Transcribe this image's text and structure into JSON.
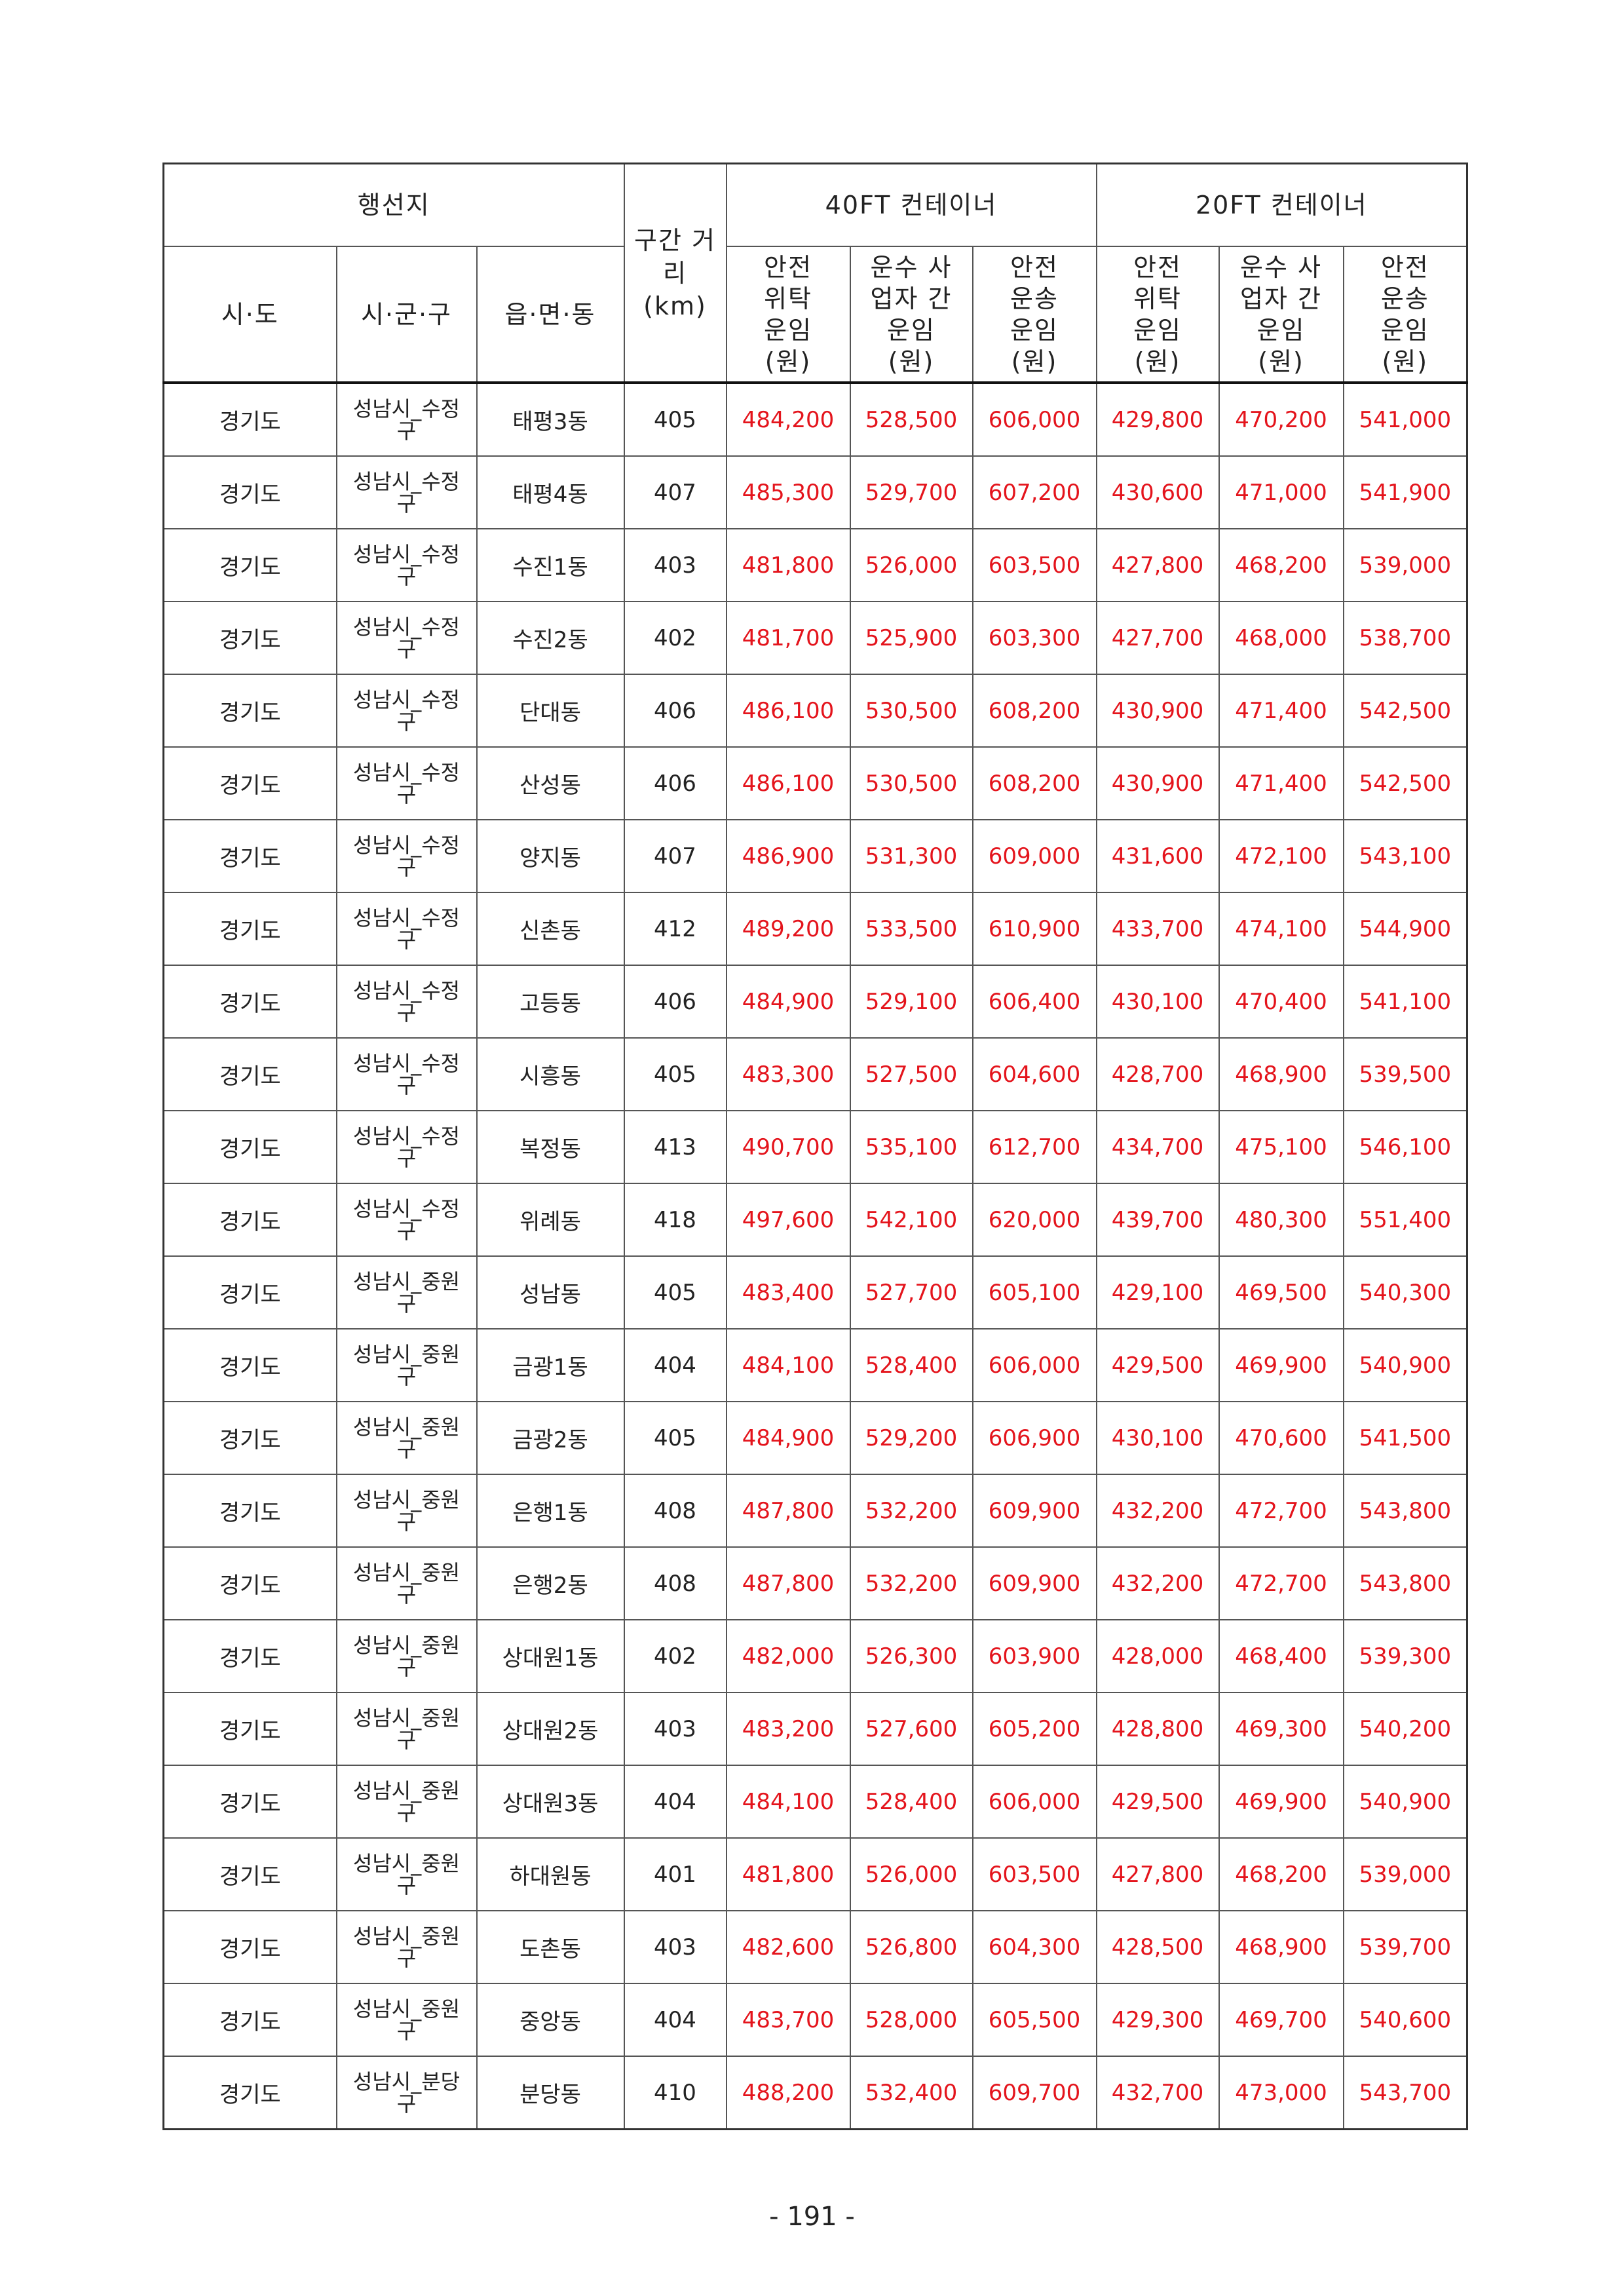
{
  "header": {
    "destination": "행선지",
    "distance": "구간 거리 (km)",
    "ft40": "40FT 컨테이너",
    "ft20": "20FT 컨테이너",
    "sido": "시·도",
    "sigungu": "시·군·구",
    "eupmyeondong": "읍·면·동",
    "safe_consign": "안전 위탁 운임 (원)",
    "carrier_between": "운수 사업자 간 운임 (원)",
    "safe_transport": "안전 운송 운임 (원)"
  },
  "rows": [
    [
      "경기도",
      "성남시_수정구",
      "태평3동",
      "405",
      "484,200",
      "528,500",
      "606,000",
      "429,800",
      "470,200",
      "541,000"
    ],
    [
      "경기도",
      "성남시_수정구",
      "태평4동",
      "407",
      "485,300",
      "529,700",
      "607,200",
      "430,600",
      "471,000",
      "541,900"
    ],
    [
      "경기도",
      "성남시_수정구",
      "수진1동",
      "403",
      "481,800",
      "526,000",
      "603,500",
      "427,800",
      "468,200",
      "539,000"
    ],
    [
      "경기도",
      "성남시_수정구",
      "수진2동",
      "402",
      "481,700",
      "525,900",
      "603,300",
      "427,700",
      "468,000",
      "538,700"
    ],
    [
      "경기도",
      "성남시_수정구",
      "단대동",
      "406",
      "486,100",
      "530,500",
      "608,200",
      "430,900",
      "471,400",
      "542,500"
    ],
    [
      "경기도",
      "성남시_수정구",
      "산성동",
      "406",
      "486,100",
      "530,500",
      "608,200",
      "430,900",
      "471,400",
      "542,500"
    ],
    [
      "경기도",
      "성남시_수정구",
      "양지동",
      "407",
      "486,900",
      "531,300",
      "609,000",
      "431,600",
      "472,100",
      "543,100"
    ],
    [
      "경기도",
      "성남시_수정구",
      "신촌동",
      "412",
      "489,200",
      "533,500",
      "610,900",
      "433,700",
      "474,100",
      "544,900"
    ],
    [
      "경기도",
      "성남시_수정구",
      "고등동",
      "406",
      "484,900",
      "529,100",
      "606,400",
      "430,100",
      "470,400",
      "541,100"
    ],
    [
      "경기도",
      "성남시_수정구",
      "시흥동",
      "405",
      "483,300",
      "527,500",
      "604,600",
      "428,700",
      "468,900",
      "539,500"
    ],
    [
      "경기도",
      "성남시_수정구",
      "복정동",
      "413",
      "490,700",
      "535,100",
      "612,700",
      "434,700",
      "475,100",
      "546,100"
    ],
    [
      "경기도",
      "성남시_수정구",
      "위례동",
      "418",
      "497,600",
      "542,100",
      "620,000",
      "439,700",
      "480,300",
      "551,400"
    ],
    [
      "경기도",
      "성남시_중원구",
      "성남동",
      "405",
      "483,400",
      "527,700",
      "605,100",
      "429,100",
      "469,500",
      "540,300"
    ],
    [
      "경기도",
      "성남시_중원구",
      "금광1동",
      "404",
      "484,100",
      "528,400",
      "606,000",
      "429,500",
      "469,900",
      "540,900"
    ],
    [
      "경기도",
      "성남시_중원구",
      "금광2동",
      "405",
      "484,900",
      "529,200",
      "606,900",
      "430,100",
      "470,600",
      "541,500"
    ],
    [
      "경기도",
      "성남시_중원구",
      "은행1동",
      "408",
      "487,800",
      "532,200",
      "609,900",
      "432,200",
      "472,700",
      "543,800"
    ],
    [
      "경기도",
      "성남시_중원구",
      "은행2동",
      "408",
      "487,800",
      "532,200",
      "609,900",
      "432,200",
      "472,700",
      "543,800"
    ],
    [
      "경기도",
      "성남시_중원구",
      "상대원1동",
      "402",
      "482,000",
      "526,300",
      "603,900",
      "428,000",
      "468,400",
      "539,300"
    ],
    [
      "경기도",
      "성남시_중원구",
      "상대원2동",
      "403",
      "483,200",
      "527,600",
      "605,200",
      "428,800",
      "469,300",
      "540,200"
    ],
    [
      "경기도",
      "성남시_중원구",
      "상대원3동",
      "404",
      "484,100",
      "528,400",
      "606,000",
      "429,500",
      "469,900",
      "540,900"
    ],
    [
      "경기도",
      "성남시_중원구",
      "하대원동",
      "401",
      "481,800",
      "526,000",
      "603,500",
      "427,800",
      "468,200",
      "539,000"
    ],
    [
      "경기도",
      "성남시_중원구",
      "도촌동",
      "403",
      "482,600",
      "526,800",
      "604,300",
      "428,500",
      "468,900",
      "539,700"
    ],
    [
      "경기도",
      "성남시_중원구",
      "중앙동",
      "404",
      "483,700",
      "528,000",
      "605,500",
      "429,300",
      "469,700",
      "540,600"
    ],
    [
      "경기도",
      "성남시_분당구",
      "분당동",
      "410",
      "488,200",
      "532,400",
      "609,700",
      "432,700",
      "473,000",
      "543,700"
    ]
  ],
  "page_number": "- 191 -",
  "colors": {
    "fare_text": "#e4141c"
  }
}
